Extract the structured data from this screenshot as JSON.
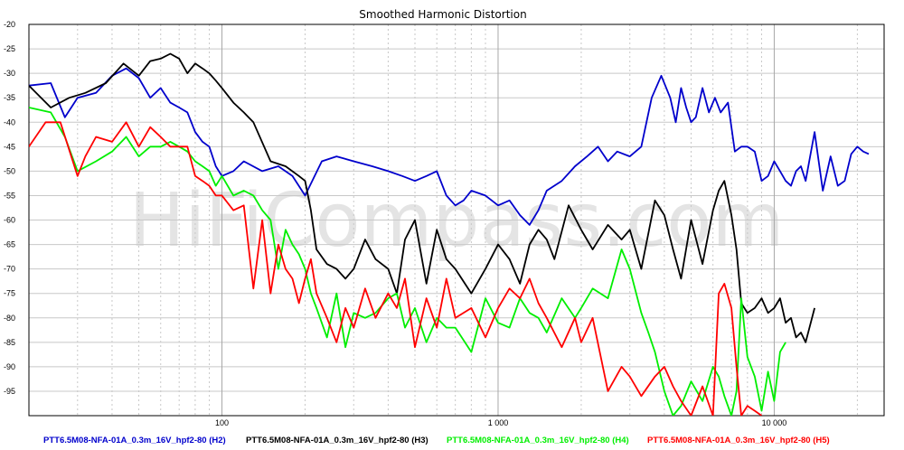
{
  "chart_data": {
    "type": "line",
    "title": "Smoothed Harmonic Distortion",
    "watermark": "HiFiCompass.com",
    "xlabel": "",
    "ylabel": "",
    "x_scale": "log",
    "xlim": [
      20,
      25000
    ],
    "ylim": [
      -100,
      -20
    ],
    "grid": true,
    "x_tick_labels": [
      {
        "value": 100,
        "label": "100"
      },
      {
        "value": 1000,
        "label": "1 000"
      },
      {
        "value": 10000,
        "label": "10 000"
      }
    ],
    "y_ticks": [
      -20,
      -25,
      -30,
      -35,
      -40,
      -45,
      -50,
      -55,
      -60,
      -65,
      -70,
      -75,
      -80,
      -85,
      -90,
      -95
    ],
    "legend_position": "bottom",
    "series": [
      {
        "name": "PTT6.5M08-NFA-01A_0.3m_16V_hpf2-80 (H2)",
        "color": "#0000cc",
        "x": [
          20,
          24,
          27,
          30,
          35,
          40,
          45,
          50,
          55,
          60,
          65,
          70,
          75,
          80,
          85,
          90,
          95,
          100,
          110,
          120,
          140,
          160,
          180,
          200,
          230,
          260,
          300,
          350,
          400,
          450,
          500,
          550,
          600,
          650,
          700,
          750,
          800,
          900,
          1000,
          1100,
          1200,
          1300,
          1400,
          1500,
          1700,
          1900,
          2100,
          2300,
          2500,
          2700,
          3000,
          3300,
          3600,
          3900,
          4200,
          4400,
          4600,
          4800,
          5000,
          5200,
          5500,
          5800,
          6100,
          6400,
          6800,
          7200,
          7600,
          8000,
          8500,
          9000,
          9500,
          10000,
          10500,
          11000,
          11500,
          12000,
          12500,
          13000,
          14000,
          15000,
          16000,
          17000,
          18000,
          19000,
          20000,
          21000,
          22000
        ],
        "y": [
          -32.5,
          -32,
          -39,
          -35,
          -34,
          -30.5,
          -29,
          -31,
          -35,
          -33,
          -36,
          -37,
          -38,
          -42,
          -44,
          -45,
          -49,
          -51,
          -50,
          -48,
          -50,
          -49,
          -51,
          -55,
          -48,
          -47,
          -48,
          -49,
          -50,
          -51,
          -52,
          -51,
          -50,
          -55,
          -57,
          -56,
          -54,
          -55,
          -57,
          -56,
          -59,
          -61,
          -58,
          -54,
          -52,
          -49,
          -47,
          -45,
          -48,
          -46,
          -47,
          -45,
          -35,
          -30.5,
          -35,
          -40,
          -33,
          -37,
          -40,
          -39,
          -33,
          -38,
          -35,
          -38,
          -36,
          -46,
          -45,
          -45,
          -46,
          -52,
          -51,
          -48,
          -50,
          -52,
          -53,
          -50,
          -49,
          -52,
          -42,
          -54,
          -47,
          -53,
          -52,
          -46.5,
          -45,
          -46,
          -46.5
        ]
      },
      {
        "name": "PTT6.5M08-NFA-01A_0.3m_16V_hpf2-80 (H3)",
        "color": "#000000",
        "x": [
          20,
          24,
          28,
          32,
          38,
          44,
          50,
          55,
          60,
          65,
          70,
          75,
          80,
          85,
          90,
          95,
          100,
          110,
          120,
          130,
          150,
          170,
          190,
          200,
          210,
          220,
          240,
          260,
          280,
          300,
          330,
          360,
          400,
          430,
          460,
          500,
          550,
          600,
          650,
          700,
          800,
          900,
          1000,
          1100,
          1200,
          1300,
          1400,
          1500,
          1600,
          1800,
          2000,
          2200,
          2500,
          2800,
          3000,
          3300,
          3700,
          4000,
          4300,
          4600,
          5000,
          5500,
          6000,
          6300,
          6600,
          7000,
          7300,
          7600,
          8000,
          8500,
          9000,
          9500,
          10000,
          10500,
          11000,
          11500,
          12000,
          12500,
          13000,
          14000
        ],
        "y": [
          -32.5,
          -37,
          -35,
          -34,
          -32,
          -28,
          -30.5,
          -27.5,
          -27,
          -26,
          -27,
          -30,
          -28,
          -29,
          -30,
          -31.5,
          -33,
          -36,
          -38,
          -40,
          -48,
          -49,
          -51,
          -52,
          -58,
          -66,
          -69,
          -70,
          -72,
          -70,
          -64,
          -68,
          -70,
          -75,
          -64,
          -60,
          -73,
          -62,
          -68,
          -70,
          -75,
          -70,
          -65,
          -68,
          -73,
          -65,
          -62,
          -64,
          -68,
          -57,
          -62,
          -66,
          -61,
          -64,
          -62,
          -70,
          -56,
          -59,
          -66,
          -72,
          -60,
          -69,
          -58,
          -54,
          -52,
          -59,
          -66,
          -77,
          -79,
          -78,
          -76,
          -79,
          -78,
          -76,
          -81,
          -80,
          -84,
          -83,
          -85,
          -78
        ]
      },
      {
        "name": "PTT6.5M08-NFA-01A_0.3m_16V_hpf2-80 (H4)",
        "color": "#00ee00",
        "x": [
          20,
          24,
          27,
          30,
          35,
          40,
          45,
          50,
          55,
          60,
          65,
          70,
          75,
          80,
          85,
          90,
          95,
          100,
          110,
          120,
          130,
          140,
          150,
          160,
          170,
          180,
          190,
          200,
          210,
          220,
          240,
          260,
          280,
          300,
          330,
          360,
          400,
          430,
          460,
          500,
          550,
          600,
          650,
          700,
          800,
          900,
          1000,
          1100,
          1200,
          1300,
          1400,
          1500,
          1700,
          1900,
          2000,
          2200,
          2500,
          2800,
          3000,
          3300,
          3500,
          3700,
          4000,
          4300,
          4600,
          5000,
          5500,
          6000,
          6300,
          6600,
          7000,
          7300,
          7600,
          8000,
          8500,
          9000,
          9500,
          10000,
          10500,
          11000
        ],
        "y": [
          -37,
          -38,
          -43,
          -50,
          -48,
          -46,
          -43,
          -47,
          -45,
          -45,
          -44,
          -45,
          -46,
          -48,
          -49,
          -50,
          -53,
          -51,
          -55,
          -54,
          -55,
          -58,
          -60,
          -70,
          -62,
          -65,
          -67,
          -70,
          -75,
          -78,
          -84,
          -75,
          -86,
          -79,
          -80,
          -79,
          -76,
          -75,
          -82,
          -78,
          -85,
          -80,
          -82,
          -82,
          -87,
          -76,
          -81,
          -82,
          -76,
          -79,
          -80,
          -83,
          -76,
          -80,
          -78,
          -74,
          -76,
          -66,
          -70,
          -79,
          -83,
          -87,
          -95,
          -100,
          -98,
          -93,
          -97,
          -90,
          -92,
          -96,
          -100,
          -95,
          -76,
          -88,
          -92,
          -99,
          -91,
          -97,
          -87,
          -85
        ]
      },
      {
        "name": "PTT6.5M08-NFA-01A_0.3m_16V_hpf2-80 (H5)",
        "color": "#ff0000",
        "x": [
          20,
          23,
          26,
          30,
          32,
          35,
          40,
          45,
          50,
          55,
          60,
          65,
          70,
          75,
          80,
          85,
          90,
          95,
          100,
          110,
          120,
          130,
          140,
          150,
          160,
          170,
          180,
          190,
          200,
          210,
          220,
          240,
          260,
          280,
          300,
          330,
          360,
          400,
          430,
          460,
          500,
          550,
          600,
          650,
          700,
          800,
          900,
          1000,
          1100,
          1200,
          1300,
          1400,
          1500,
          1700,
          1900,
          2000,
          2200,
          2500,
          2800,
          3000,
          3300,
          3700,
          4000,
          4300,
          4600,
          5000,
          5500,
          6000,
          6300,
          6600,
          7000,
          7300,
          7600,
          8000,
          8500,
          9000
        ],
        "y": [
          -45,
          -40,
          -40,
          -51,
          -47,
          -43,
          -44,
          -40,
          -45,
          -41,
          -43,
          -45,
          -45,
          -45,
          -51,
          -52,
          -53,
          -55,
          -55,
          -58,
          -57,
          -74,
          -60,
          -75,
          -65,
          -70,
          -72,
          -77,
          -72,
          -68,
          -75,
          -80,
          -85,
          -78,
          -82,
          -74,
          -80,
          -75,
          -78,
          -72,
          -86,
          -76,
          -82,
          -72,
          -80,
          -78,
          -84,
          -78,
          -74,
          -76,
          -72,
          -77,
          -80,
          -86,
          -80,
          -85,
          -80,
          -95,
          -90,
          -92,
          -96,
          -92,
          -90,
          -94,
          -97,
          -100,
          -94,
          -100,
          -75,
          -73,
          -78,
          -90,
          -100,
          -98,
          -99,
          -100
        ]
      }
    ]
  }
}
